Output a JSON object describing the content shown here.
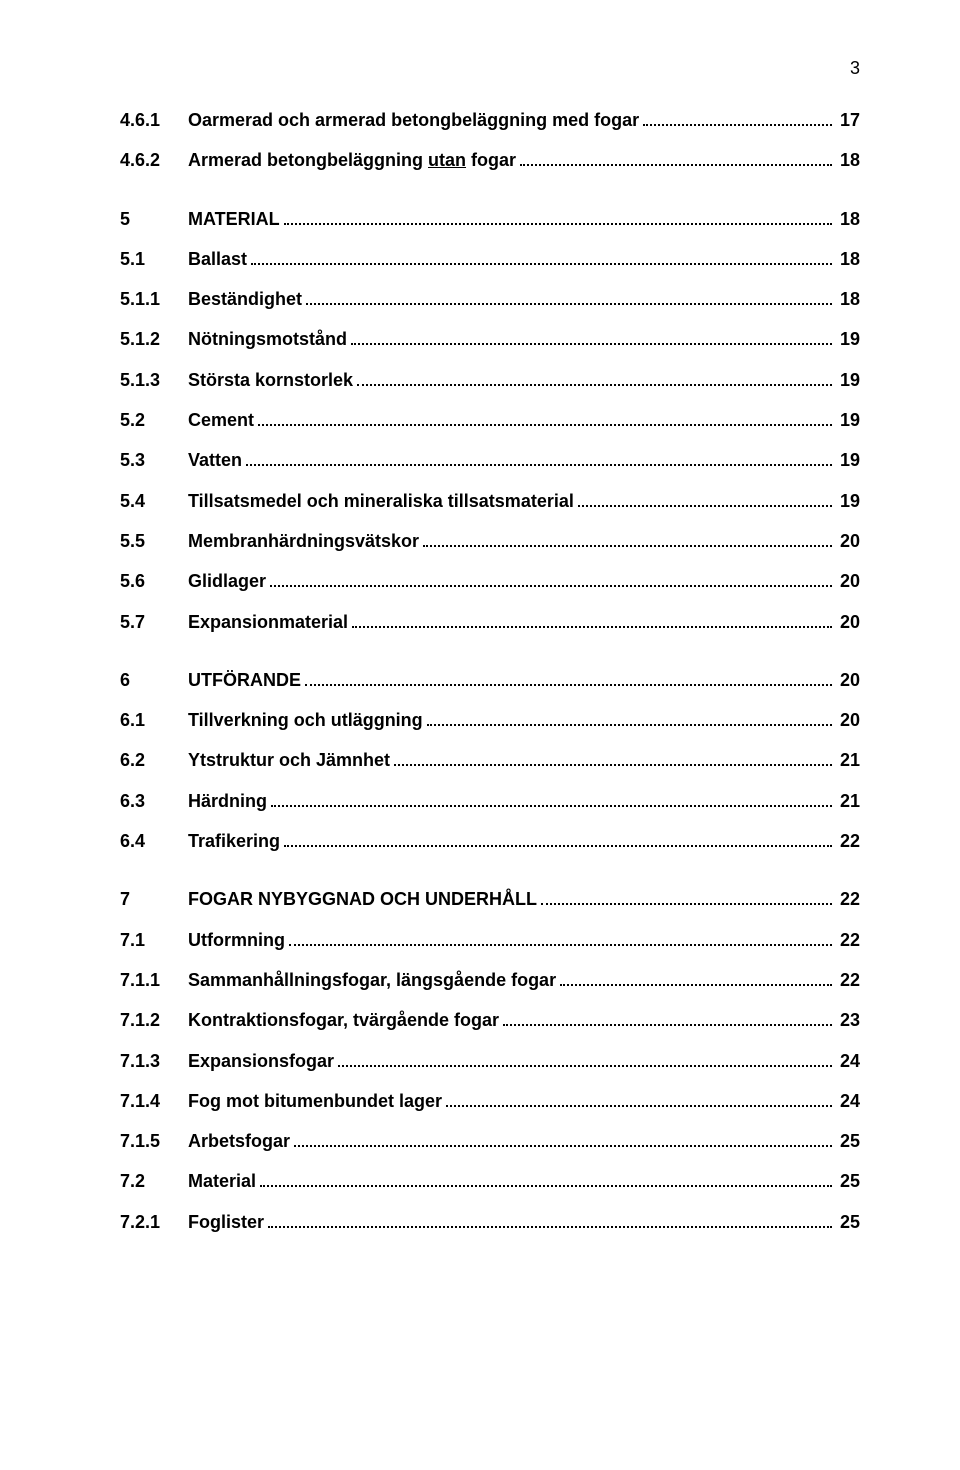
{
  "page_number": "3",
  "font_family": "Arial",
  "text_color": "#000000",
  "background_color": "#ffffff",
  "toc": [
    {
      "num": "4.6.1",
      "title": "Oarmerad och armerad betongbeläggning med fogar",
      "page": "17",
      "gap_after": "small"
    },
    {
      "num": "4.6.2",
      "title_html": "Armerad betongbeläggning <span class=\"underline\">utan</span> fogar",
      "page": "18",
      "gap_after": "med"
    },
    {
      "num": "5",
      "title": "MATERIAL",
      "page": "18",
      "gap_after": "small"
    },
    {
      "num": "5.1",
      "title": "Ballast",
      "page": "18",
      "gap_after": "small"
    },
    {
      "num": "5.1.1",
      "title": "Beständighet",
      "page": "18",
      "gap_after": "small"
    },
    {
      "num": "5.1.2",
      "title": "Nötningsmotstånd",
      "page": "19",
      "gap_after": "small"
    },
    {
      "num": "5.1.3",
      "title": "Största kornstorlek",
      "page": "19",
      "gap_after": "small"
    },
    {
      "num": "5.2",
      "title": "Cement",
      "page": "19",
      "gap_after": "small"
    },
    {
      "num": "5.3",
      "title": "Vatten",
      "page": "19",
      "gap_after": "small"
    },
    {
      "num": "5.4",
      "title": "Tillsatsmedel och mineraliska tillsatsmaterial",
      "page": "19",
      "gap_after": "small"
    },
    {
      "num": "5.5",
      "title": "Membranhärdningsvätskor",
      "page": "20",
      "gap_after": "small"
    },
    {
      "num": "5.6",
      "title": "Glidlager",
      "page": "20",
      "gap_after": "small"
    },
    {
      "num": "5.7",
      "title": "Expansionmaterial",
      "page": "20",
      "gap_after": "med"
    },
    {
      "num": "6",
      "title": "UTFÖRANDE",
      "page": "20",
      "gap_after": "small"
    },
    {
      "num": "6.1",
      "title": "Tillverkning och utläggning",
      "page": "20",
      "gap_after": "small"
    },
    {
      "num": "6.2",
      "title": "Ytstruktur och Jämnhet",
      "page": "21",
      "gap_after": "small"
    },
    {
      "num": "6.3",
      "title": "Härdning",
      "page": "21",
      "gap_after": "small"
    },
    {
      "num": "6.4",
      "title": "Trafikering",
      "page": "22",
      "gap_after": "med"
    },
    {
      "num": "7",
      "title": "FOGAR NYBYGGNAD OCH UNDERHÅLL",
      "page": "22",
      "gap_after": "small"
    },
    {
      "num": "7.1",
      "title": "Utformning",
      "page": "22",
      "gap_after": "small"
    },
    {
      "num": "7.1.1",
      "title": "Sammanhållningsfogar, längsgående fogar",
      "page": "22",
      "gap_after": "small"
    },
    {
      "num": "7.1.2",
      "title": "Kontraktionsfogar, tvärgående fogar",
      "page": "23",
      "gap_after": "small"
    },
    {
      "num": "7.1.3",
      "title": "Expansionsfogar",
      "page": "24",
      "gap_after": "small"
    },
    {
      "num": "7.1.4",
      "title": "Fog mot bitumenbundet lager",
      "page": "24",
      "gap_after": "small"
    },
    {
      "num": "7.1.5",
      "title": "Arbetsfogar",
      "page": "25",
      "gap_after": "small"
    },
    {
      "num": "7.2",
      "title": "Material",
      "page": "25",
      "gap_after": "small"
    },
    {
      "num": "7.2.1",
      "title": "Foglister",
      "page": "25",
      "gap_after": "none"
    }
  ]
}
